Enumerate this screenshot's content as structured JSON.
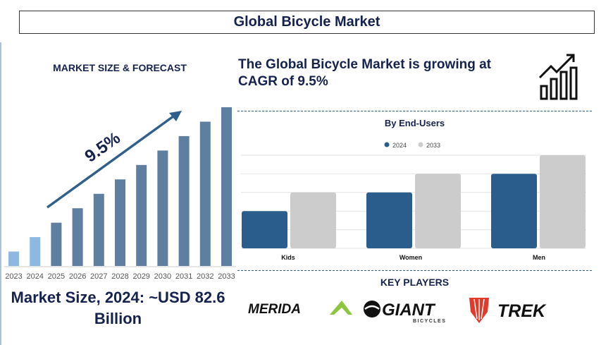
{
  "title": "Global Bicycle Market",
  "left_heading": "MARKET SIZE & FORECAST",
  "headline": "The Global Bicycle Market is growing at CAGR of 9.5%",
  "market_size": "Market Size, 2024: ~USD 82.6 Billion",
  "key_players_heading": "KEY PLAYERS",
  "key_players": [
    "MERIDA",
    "GIANT",
    "TREK"
  ],
  "giant_sub": "BICYCLES",
  "icons": {
    "growth": "growth-chart-icon"
  },
  "chart_data": [
    {
      "type": "bar",
      "title": "",
      "categories": [
        "2023",
        "2024",
        "2025",
        "2026",
        "2027",
        "2028",
        "2029",
        "2030",
        "2031",
        "2032",
        "2033"
      ],
      "values": [
        1,
        2,
        3,
        4,
        5,
        6,
        7,
        8,
        9,
        10,
        11
      ],
      "annotation": "9.5%",
      "colors": {
        "historic": "#8db8e0",
        "forecast": "#5e7f9f",
        "arrow": "#2f5f8a"
      },
      "grid": false
    },
    {
      "type": "bar",
      "title": "By End-Users",
      "categories": [
        "Kids",
        "Women",
        "Men"
      ],
      "series": [
        {
          "name": "2024",
          "values": [
            2,
            3,
            4
          ],
          "color": "#2a5d8c"
        },
        {
          "name": "2033",
          "values": [
            3,
            4,
            5
          ],
          "color": "#cccccc"
        }
      ],
      "ylim": [
        0,
        5
      ],
      "grid": true,
      "legend": "top"
    }
  ]
}
